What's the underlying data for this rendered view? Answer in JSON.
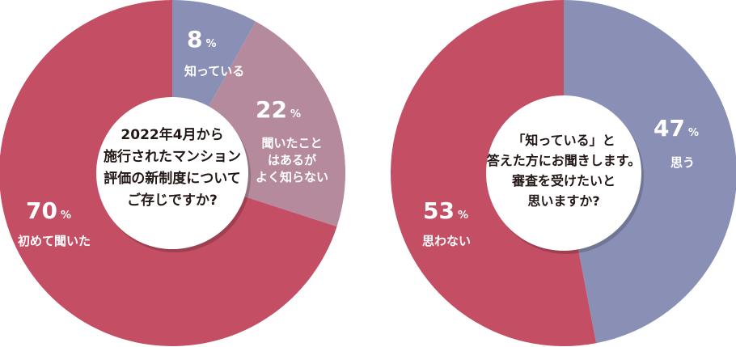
{
  "chart_data": [
    {
      "type": "pie",
      "center_text": [
        "2022年4月から",
        "施行されたマンション",
        "評価の新制度について",
        "ご存じですか?"
      ],
      "unit": "%",
      "slices": [
        {
          "label_lines": [
            "知っている"
          ],
          "value": 8,
          "color": "#8a90b5"
        },
        {
          "label_lines": [
            "聞いたこと",
            "はあるが",
            "よく知らない"
          ],
          "value": 22,
          "color": "#b58a9c"
        },
        {
          "label_lines": [
            "初めて聞いた"
          ],
          "value": 70,
          "color": "#c44e64"
        }
      ]
    },
    {
      "type": "pie",
      "center_text": [
        "「知っている」と",
        "答えた方にお聞きします。",
        "審査を受けたいと",
        "思いますか?"
      ],
      "unit": "%",
      "slices": [
        {
          "label_lines": [
            "思う"
          ],
          "value": 47,
          "color": "#8a90b5"
        },
        {
          "label_lines": [
            "思わない"
          ],
          "value": 53,
          "color": "#c44e64"
        }
      ]
    }
  ]
}
